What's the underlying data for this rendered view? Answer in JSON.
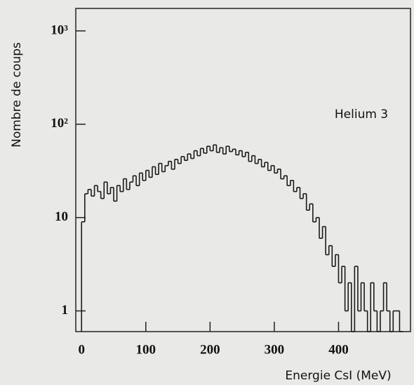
{
  "chart_data": {
    "type": "histogram",
    "annotation": "Helium 3",
    "xlabel": "Energie CsI (MeV)",
    "ylabel": "Nombre de coups",
    "bins": [
      0,
      5,
      10,
      15,
      20,
      25,
      30,
      35,
      40,
      45,
      50,
      55,
      60,
      65,
      70,
      75,
      80,
      85,
      90,
      95,
      100,
      105,
      110,
      115,
      120,
      125,
      130,
      135,
      140,
      145,
      150,
      155,
      160,
      165,
      170,
      175,
      180,
      185,
      190,
      195,
      200,
      205,
      210,
      215,
      220,
      225,
      230,
      235,
      240,
      245,
      250,
      255,
      260,
      265,
      270,
      275,
      280,
      285,
      290,
      295,
      300,
      305,
      310,
      315,
      320,
      325,
      330,
      335,
      340,
      345,
      350,
      355,
      360,
      365,
      370,
      375,
      380,
      385,
      390,
      395,
      400,
      405,
      410,
      415,
      420,
      425,
      430,
      435,
      440,
      445,
      450,
      455,
      460,
      465,
      470,
      475,
      480,
      485,
      490,
      495,
      500
    ],
    "values": [
      9,
      18,
      20,
      17,
      22,
      19,
      16,
      24,
      18,
      21,
      15,
      22,
      19,
      26,
      20,
      24,
      28,
      22,
      30,
      25,
      32,
      27,
      35,
      29,
      38,
      31,
      36,
      40,
      33,
      42,
      38,
      45,
      41,
      48,
      43,
      52,
      46,
      55,
      49,
      58,
      52,
      60,
      50,
      56,
      48,
      58,
      51,
      54,
      47,
      52,
      45,
      50,
      40,
      46,
      38,
      42,
      35,
      39,
      32,
      36,
      30,
      33,
      26,
      28,
      22,
      25,
      19,
      21,
      16,
      18,
      12,
      14,
      9,
      10,
      6,
      8,
      4,
      5,
      3,
      4,
      2,
      3,
      1,
      2,
      0,
      3,
      1,
      2,
      1,
      0,
      2,
      1,
      0,
      1,
      2,
      1,
      0,
      1,
      1,
      0
    ],
    "color": "#1a1a1a",
    "log_y": true,
    "xlim": [
      -9,
      512
    ],
    "ylim": [
      0.6,
      1740
    ],
    "xticks": [
      0,
      100,
      200,
      300,
      400
    ],
    "yticks": [
      1,
      10,
      {
        "value": 100,
        "label": "10²"
      },
      {
        "value": 1000,
        "label": "10³"
      }
    ]
  }
}
